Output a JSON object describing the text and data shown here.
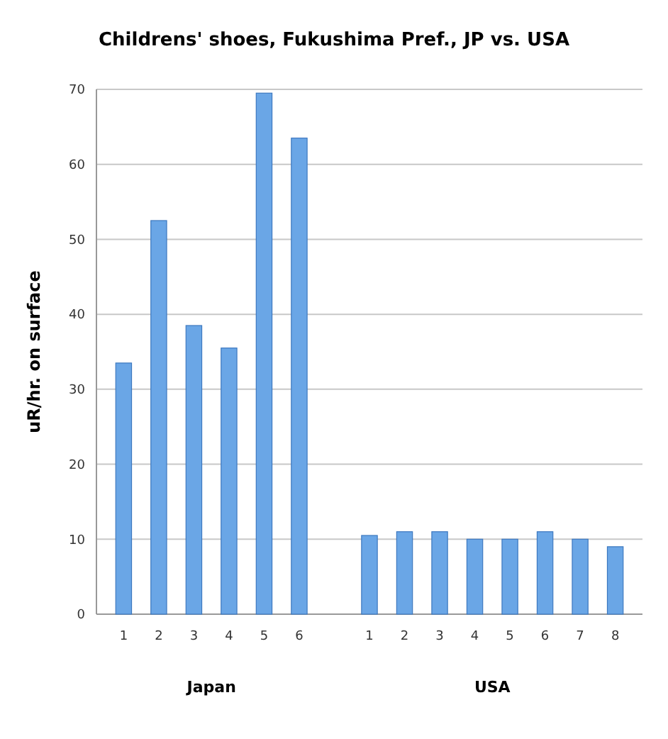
{
  "chart_data": {
    "type": "bar",
    "title": "Childrens' shoes, Fukushima Pref., JP vs. USA",
    "ylabel": "uR/hr. on surface",
    "categories": [
      "1",
      "2",
      "3",
      "4",
      "5",
      "6",
      null,
      "1",
      "2",
      "3",
      "4",
      "5",
      "6",
      "7",
      "8"
    ],
    "values": [
      33.5,
      52.5,
      38.5,
      35.5,
      69.5,
      63.5,
      null,
      10.5,
      11,
      11,
      10,
      10,
      11,
      10,
      9
    ],
    "color": "#6aa6e6",
    "ylim": [
      0,
      70
    ],
    "yticks": [
      0,
      10,
      20,
      30,
      40,
      50,
      60,
      70
    ],
    "grid": "y",
    "annotations": [
      "Japan",
      "USA"
    ]
  }
}
